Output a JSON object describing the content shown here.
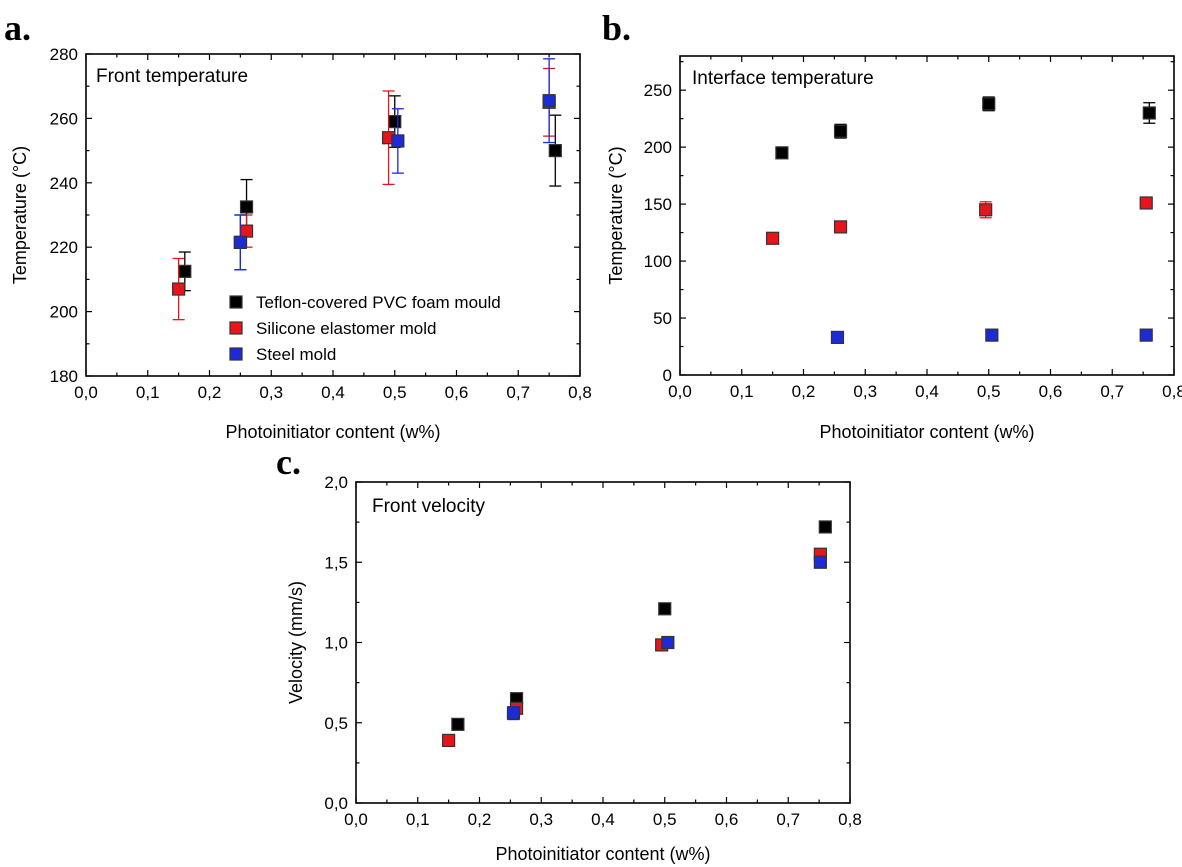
{
  "colors": {
    "Teflon-covered PVC foam mould": "#000000",
    "Silicone elastomer mold": "#e8141c",
    "Steel mold": "#1c2bd6"
  },
  "chart_data": [
    {
      "panel": "a.",
      "type": "scatter",
      "title": "Front temperature",
      "xlabel": "Photoinitiator content (w%)",
      "ylabel": "Temperature (°C)",
      "xlim": [
        0.0,
        0.8
      ],
      "ylim": [
        180,
        280
      ],
      "xticks": [
        "0,0",
        "0,1",
        "0,2",
        "0,3",
        "0,4",
        "0,5",
        "0,6",
        "0,7",
        "0,8"
      ],
      "yticks": [
        "180",
        "200",
        "220",
        "240",
        "260",
        "280"
      ],
      "legend": "lower-right",
      "series": [
        {
          "name": "Teflon-covered PVC foam mould",
          "x": [
            0.16,
            0.26,
            0.5,
            0.76
          ],
          "y": [
            212.5,
            232.5,
            259,
            250
          ],
          "err": [
            6,
            8.5,
            8,
            11
          ]
        },
        {
          "name": "Silicone elastomer mold",
          "x": [
            0.15,
            0.26,
            0.49,
            0.75
          ],
          "y": [
            207,
            225,
            254,
            265
          ],
          "err": [
            9.5,
            5,
            14.5,
            10.5
          ]
        },
        {
          "name": "Steel mold",
          "x": [
            0.25,
            0.25,
            0.505,
            0.75
          ],
          "y": [
            221.5,
            221.5,
            253,
            265.5
          ],
          "err": [
            8.5,
            8.5,
            10,
            13
          ]
        }
      ]
    },
    {
      "panel": "b.",
      "type": "scatter",
      "title": "Interface temperature",
      "xlabel": "Photoinitiator content (w%)",
      "ylabel": "Temperature (°C)",
      "xlim": [
        0.0,
        0.8
      ],
      "ylim": [
        0,
        280
      ],
      "xticks": [
        "0,0",
        "0,1",
        "0,2",
        "0,3",
        "0,4",
        "0,5",
        "0,6",
        "0,7",
        "0,8"
      ],
      "yticks": [
        "0",
        "50",
        "100",
        "150",
        "200",
        "250"
      ],
      "series": [
        {
          "name": "Teflon-covered PVC foam mould",
          "x": [
            0.165,
            0.26,
            0.5,
            0.76
          ],
          "y": [
            195,
            214,
            238,
            230
          ],
          "err": [
            3,
            6,
            6,
            9
          ]
        },
        {
          "name": "Silicone elastomer mold",
          "x": [
            0.15,
            0.26,
            0.495,
            0.755
          ],
          "y": [
            120,
            130,
            145,
            151
          ],
          "err": [
            2,
            3,
            7,
            4
          ]
        },
        {
          "name": "Steel mold",
          "x": [
            0.255,
            0.505,
            0.755
          ],
          "y": [
            33,
            35,
            35
          ],
          "err": [
            2,
            2,
            2
          ]
        }
      ]
    },
    {
      "panel": "c.",
      "type": "scatter",
      "title": "Front velocity",
      "xlabel": "Photoinitiator content (w%)",
      "ylabel": "Velocity (mm/s)",
      "xlim": [
        0.0,
        0.8
      ],
      "ylim": [
        0.0,
        2.0
      ],
      "xticks": [
        "0,0",
        "0,1",
        "0,2",
        "0,3",
        "0,4",
        "0,5",
        "0,6",
        "0,7",
        "0,8"
      ],
      "yticks": [
        "0,0",
        "0,5",
        "1,0",
        "1,5",
        "2,0"
      ],
      "series": [
        {
          "name": "Teflon-covered PVC foam mould",
          "x": [
            0.165,
            0.26,
            0.5,
            0.76
          ],
          "y": [
            0.49,
            0.65,
            1.21,
            1.72
          ],
          "err": [
            0.02,
            0.03,
            0.02,
            0.02
          ]
        },
        {
          "name": "Silicone elastomer mold",
          "x": [
            0.15,
            0.26,
            0.495,
            0.752
          ],
          "y": [
            0.39,
            0.59,
            0.985,
            1.55
          ],
          "err": [
            0.01,
            0.02,
            0.02,
            0.02
          ]
        },
        {
          "name": "Steel mold",
          "x": [
            0.255,
            0.505,
            0.752
          ],
          "y": [
            0.56,
            1.0,
            1.5
          ],
          "err": [
            0.04,
            0.02,
            0.02
          ]
        }
      ]
    }
  ]
}
